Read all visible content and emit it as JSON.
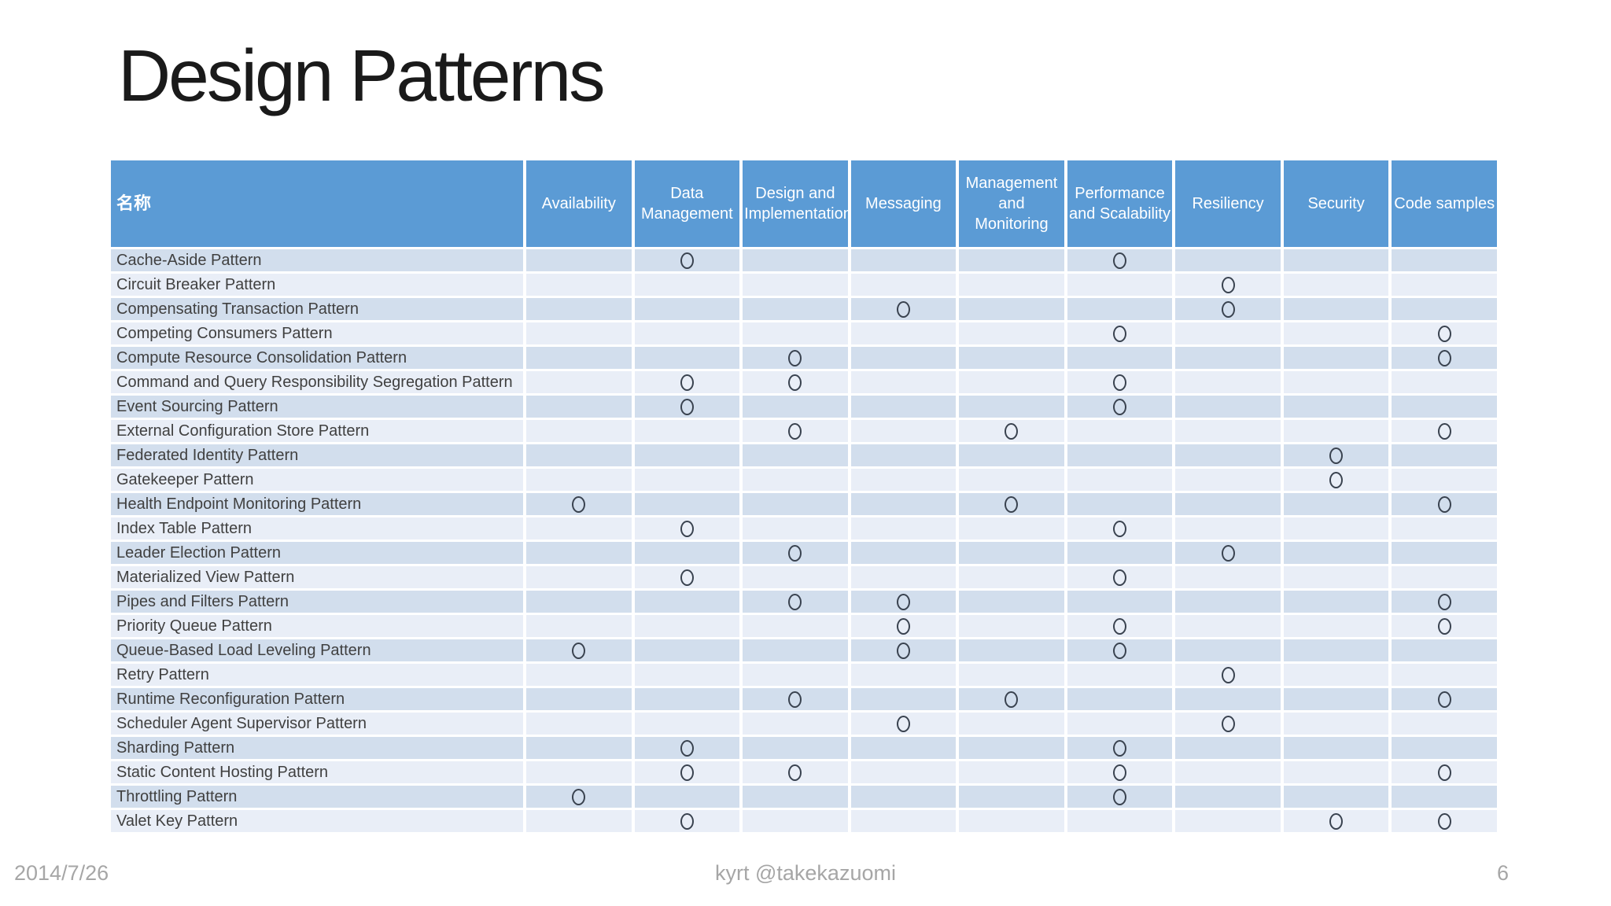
{
  "title": "Design Patterns",
  "footer": {
    "date": "2014/7/26",
    "credit": "kyrt @takekazuomi",
    "page_number": "6"
  },
  "colors": {
    "title_text": "#1a1a1a",
    "header_bg": "#5b9bd5",
    "header_text": "#ffffff",
    "row_band_dark": "#d2deed",
    "row_band_light": "#e9eef7",
    "row_text": "#404040",
    "circle_stroke": "#39424f",
    "footer_text": "#a6a6a6"
  },
  "table": {
    "name_header": "名称",
    "columns": [
      "Availability",
      "Data Management",
      "Design and Implementation",
      "Messaging",
      "Management and Monitoring",
      "Performance and Scalability",
      "Resiliency",
      "Security",
      "Code samples"
    ],
    "rows": [
      {
        "name": "Cache-Aside Pattern",
        "marks": [
          0,
          1,
          0,
          0,
          0,
          1,
          0,
          0,
          0
        ]
      },
      {
        "name": "Circuit Breaker Pattern",
        "marks": [
          0,
          0,
          0,
          0,
          0,
          0,
          1,
          0,
          0
        ]
      },
      {
        "name": "Compensating Transaction Pattern",
        "marks": [
          0,
          0,
          0,
          1,
          0,
          0,
          1,
          0,
          0
        ]
      },
      {
        "name": "Competing Consumers Pattern",
        "marks": [
          0,
          0,
          0,
          0,
          0,
          1,
          0,
          0,
          1
        ]
      },
      {
        "name": "Compute Resource Consolidation Pattern",
        "marks": [
          0,
          0,
          1,
          0,
          0,
          0,
          0,
          0,
          1
        ]
      },
      {
        "name": "Command and Query Responsibility Segregation Pattern",
        "marks": [
          0,
          1,
          1,
          0,
          0,
          1,
          0,
          0,
          0
        ]
      },
      {
        "name": "Event Sourcing Pattern",
        "marks": [
          0,
          1,
          0,
          0,
          0,
          1,
          0,
          0,
          0
        ]
      },
      {
        "name": "External Configuration Store Pattern",
        "marks": [
          0,
          0,
          1,
          0,
          1,
          0,
          0,
          0,
          1
        ]
      },
      {
        "name": "Federated Identity Pattern",
        "marks": [
          0,
          0,
          0,
          0,
          0,
          0,
          0,
          1,
          0
        ]
      },
      {
        "name": "Gatekeeper Pattern",
        "marks": [
          0,
          0,
          0,
          0,
          0,
          0,
          0,
          1,
          0
        ]
      },
      {
        "name": "Health Endpoint Monitoring Pattern",
        "marks": [
          1,
          0,
          0,
          0,
          1,
          0,
          0,
          0,
          1
        ]
      },
      {
        "name": "Index Table Pattern",
        "marks": [
          0,
          1,
          0,
          0,
          0,
          1,
          0,
          0,
          0
        ]
      },
      {
        "name": "Leader Election Pattern",
        "marks": [
          0,
          0,
          1,
          0,
          0,
          0,
          1,
          0,
          0
        ]
      },
      {
        "name": "Materialized View Pattern",
        "marks": [
          0,
          1,
          0,
          0,
          0,
          1,
          0,
          0,
          0
        ]
      },
      {
        "name": "Pipes and Filters Pattern",
        "marks": [
          0,
          0,
          1,
          1,
          0,
          0,
          0,
          0,
          1
        ]
      },
      {
        "name": "Priority Queue Pattern",
        "marks": [
          0,
          0,
          0,
          1,
          0,
          1,
          0,
          0,
          1
        ]
      },
      {
        "name": "Queue-Based Load Leveling Pattern",
        "marks": [
          1,
          0,
          0,
          1,
          0,
          1,
          0,
          0,
          0
        ]
      },
      {
        "name": "Retry Pattern",
        "marks": [
          0,
          0,
          0,
          0,
          0,
          0,
          1,
          0,
          0
        ]
      },
      {
        "name": "Runtime Reconfiguration Pattern",
        "marks": [
          0,
          0,
          1,
          0,
          1,
          0,
          0,
          0,
          1
        ]
      },
      {
        "name": "Scheduler Agent Supervisor Pattern",
        "marks": [
          0,
          0,
          0,
          1,
          0,
          0,
          1,
          0,
          0
        ]
      },
      {
        "name": "Sharding Pattern",
        "marks": [
          0,
          1,
          0,
          0,
          0,
          1,
          0,
          0,
          0
        ]
      },
      {
        "name": "Static Content Hosting Pattern",
        "marks": [
          0,
          1,
          1,
          0,
          0,
          1,
          0,
          0,
          1
        ]
      },
      {
        "name": "Throttling Pattern",
        "marks": [
          1,
          0,
          0,
          0,
          0,
          1,
          0,
          0,
          0
        ]
      },
      {
        "name": "Valet Key Pattern",
        "marks": [
          0,
          1,
          0,
          0,
          0,
          0,
          0,
          1,
          1
        ]
      }
    ]
  }
}
